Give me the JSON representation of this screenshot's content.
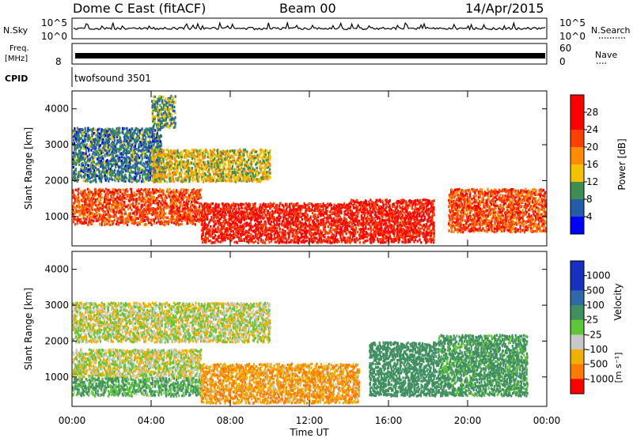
{
  "header": {
    "station": "Dome C East (fitACF)",
    "beam": "Beam 00",
    "date": "14/Apr/2015"
  },
  "nsky_panel": {
    "label": "N.Sky",
    "right_label": "N.Search",
    "ticks": [
      "10^5",
      "10^0"
    ],
    "right_ticks": [
      "10^5",
      "10^0"
    ]
  },
  "freq_panel": {
    "label_line1": "Freq.",
    "label_line2": "[MHz]",
    "tick": "8",
    "right_label": "Nave",
    "right_ticks": [
      "60",
      "0"
    ]
  },
  "cpid_panel": {
    "label": "CPID",
    "text": "twofsound 3501"
  },
  "axes": {
    "ylabel": "Slant Range [km]",
    "yticks": [
      "4000",
      "3000",
      "2000",
      "1000"
    ],
    "xlabel": "Time UT",
    "xticks": [
      "00:00",
      "04:00",
      "08:00",
      "12:00",
      "16:00",
      "20:00",
      "00:00"
    ]
  },
  "power_colorbar": {
    "label": "Power [dB]",
    "ticks": [
      "28",
      "24",
      "20",
      "16",
      "12",
      "8",
      "4"
    ],
    "colors": [
      "#ff0000",
      "#ff4000",
      "#ff8c00",
      "#f2c200",
      "#3e8e50",
      "#235da8",
      "#0000ff"
    ]
  },
  "velocity_colorbar": {
    "label": "Velocity",
    "unit": "[m s⁻¹]",
    "ticks": [
      "1000",
      "500",
      "100",
      "25",
      "-25",
      "-100",
      "-500",
      "-1000"
    ],
    "colors": [
      "#1830c0",
      "#2f6aa8",
      "#3f8f60",
      "#5fc63a",
      "#c8c8c8",
      "#f0b000",
      "#ff7a00",
      "#ff0000"
    ]
  },
  "chart_data": {
    "type": "heatmap",
    "title": "Dome C East (fitACF)",
    "x_range_hours_ut": [
      0,
      24
    ],
    "y_range_km": [
      180,
      4500
    ],
    "grid": false,
    "panels": [
      {
        "name": "Power",
        "unit": "dB",
        "color_scale_ticks": [
          4,
          8,
          12,
          16,
          20,
          24,
          28
        ],
        "regions": [
          {
            "t": [
              0,
              6.5
            ],
            "range_km": [
              800,
              1800
            ],
            "power_db": 26
          },
          {
            "t": [
              6.5,
              14
            ],
            "range_km": [
              300,
              1400
            ],
            "power_db": 29
          },
          {
            "t": [
              14,
              18.3
            ],
            "range_km": [
              300,
              1500
            ],
            "power_db": 29
          },
          {
            "t": [
              19,
              24
            ],
            "range_km": [
              600,
              1800
            ],
            "power_db": 26
          },
          {
            "t": [
              0,
              4.5
            ],
            "range_km": [
              2000,
              3500
            ],
            "power_db": 12
          },
          {
            "t": [
              4,
              10
            ],
            "range_km": [
              2000,
              2900
            ],
            "power_db": 18
          },
          {
            "t": [
              4,
              5.2
            ],
            "range_km": [
              3500,
              4400
            ],
            "power_db": 14
          }
        ]
      },
      {
        "name": "Velocity",
        "unit": "m/s",
        "color_scale_ticks": [
          -1000,
          -500,
          -100,
          -25,
          25,
          100,
          500,
          1000
        ],
        "regions": [
          {
            "t": [
              0,
              6.5
            ],
            "range_km": [
              1000,
              1800
            ],
            "velocity": 0
          },
          {
            "t": [
              0,
              6.5
            ],
            "range_km": [
              500,
              1000
            ],
            "velocity": 100
          },
          {
            "t": [
              6.5,
              14.5
            ],
            "range_km": [
              300,
              1400
            ],
            "velocity": -100
          },
          {
            "t": [
              15,
              18.5
            ],
            "range_km": [
              500,
              2000
            ],
            "velocity": 200
          },
          {
            "t": [
              18.5,
              23
            ],
            "range_km": [
              500,
              2200
            ],
            "velocity": 150
          },
          {
            "t": [
              0,
              10
            ],
            "range_km": [
              2000,
              3100
            ],
            "velocity": 0
          }
        ]
      }
    ]
  }
}
